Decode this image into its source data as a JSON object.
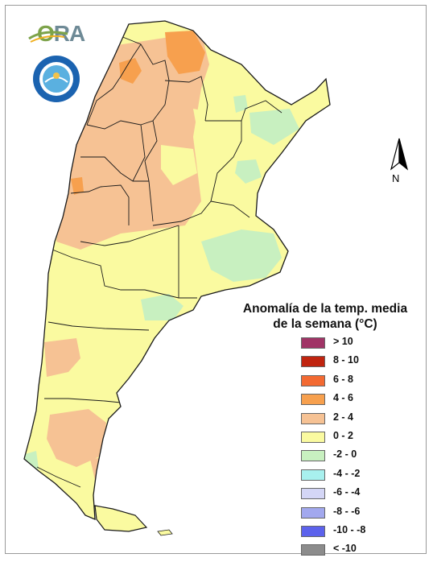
{
  "logo": {
    "text_o": "O",
    "text_rest": "RA"
  },
  "north_arrow": {
    "label": "N"
  },
  "legend": {
    "title_line1": "Anomalía de la temp. media",
    "title_line2": "de la semana (°C)",
    "items": [
      {
        "label": "> 10",
        "color": "#a03466"
      },
      {
        "label": "8 - 10",
        "color": "#c0240f"
      },
      {
        "label": "6 - 8",
        "color": "#f36a32"
      },
      {
        "label": "4 - 6",
        "color": "#f7a04e"
      },
      {
        "label": "2 - 4",
        "color": "#f6c294"
      },
      {
        "label": "0 - 2",
        "color": "#fafaa0"
      },
      {
        "label": "-2 - 0",
        "color": "#c8f0c0"
      },
      {
        "label": "-4 - -2",
        "color": "#a8f0ee"
      },
      {
        "label": "-6 - -4",
        "color": "#d4d6f6"
      },
      {
        "label": "-8 - -6",
        "color": "#a2a8ee"
      },
      {
        "label": "-10 - -8",
        "color": "#5c62ec"
      },
      {
        "label": "< -10",
        "color": "#8c8c8c"
      }
    ]
  }
}
